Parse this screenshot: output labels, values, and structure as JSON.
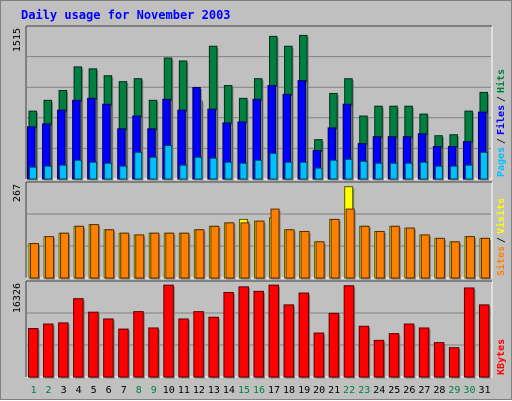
{
  "chart_data": [
    {
      "type": "bar",
      "title": "Daily usage for November 2003",
      "categories": [
        "1",
        "2",
        "3",
        "4",
        "5",
        "6",
        "7",
        "8",
        "9",
        "10",
        "11",
        "12",
        "13",
        "14",
        "15",
        "16",
        "17",
        "18",
        "19",
        "20",
        "21",
        "22",
        "23",
        "24",
        "25",
        "26",
        "27",
        "28",
        "29",
        "30",
        "31"
      ],
      "weekend_days": [
        "1",
        "2",
        "8",
        "9",
        "15",
        "16",
        "22",
        "23",
        "29",
        "30"
      ],
      "ylim": [
        0,
        1515
      ],
      "y_max_label": "1515",
      "series": [
        {
          "name": "Hits",
          "color": "#008040",
          "values": [
            690,
            800,
            900,
            1140,
            1120,
            1050,
            990,
            1020,
            800,
            1230,
            1200,
            800,
            1350,
            950,
            820,
            1020,
            1450,
            1350,
            1460,
            400,
            870,
            1020,
            640,
            740,
            740,
            740,
            660,
            440,
            450,
            690,
            880
          ]
        },
        {
          "name": "Files",
          "color": "#0000ff",
          "values": [
            530,
            560,
            700,
            800,
            820,
            760,
            510,
            640,
            510,
            810,
            700,
            930,
            710,
            570,
            580,
            810,
            950,
            860,
            1000,
            290,
            520,
            760,
            360,
            430,
            430,
            430,
            460,
            330,
            330,
            380,
            680
          ]
        },
        {
          "name": "Pages",
          "color": "#00c0ff",
          "values": [
            120,
            130,
            140,
            190,
            170,
            160,
            130,
            270,
            220,
            340,
            140,
            220,
            210,
            170,
            160,
            190,
            260,
            170,
            170,
            110,
            190,
            200,
            180,
            160,
            160,
            160,
            170,
            130,
            130,
            140,
            270
          ]
        }
      ]
    },
    {
      "type": "bar",
      "categories": [
        "1",
        "2",
        "3",
        "4",
        "5",
        "6",
        "7",
        "8",
        "9",
        "10",
        "11",
        "12",
        "13",
        "14",
        "15",
        "16",
        "17",
        "18",
        "19",
        "20",
        "21",
        "22",
        "23",
        "24",
        "25",
        "26",
        "27",
        "28",
        "29",
        "30",
        "31"
      ],
      "ylim": [
        0,
        267
      ],
      "y_max_label": "267",
      "series": [
        {
          "name": "Visits",
          "color": "#ffff00",
          "values": [
            100,
            120,
            130,
            150,
            155,
            140,
            130,
            125,
            130,
            130,
            130,
            140,
            150,
            160,
            170,
            165,
            175,
            140,
            135,
            105,
            170,
            265,
            150,
            135,
            150,
            145,
            125,
            115,
            105,
            120,
            115
          ]
        },
        {
          "name": "Sites",
          "color": "#ff8000",
          "values": [
            100,
            120,
            130,
            150,
            155,
            140,
            130,
            125,
            130,
            130,
            130,
            140,
            150,
            160,
            160,
            165,
            200,
            140,
            135,
            105,
            170,
            200,
            150,
            135,
            150,
            145,
            125,
            115,
            105,
            120,
            115
          ]
        }
      ]
    },
    {
      "type": "bar",
      "categories": [
        "1",
        "2",
        "3",
        "4",
        "5",
        "6",
        "7",
        "8",
        "9",
        "10",
        "11",
        "12",
        "13",
        "14",
        "15",
        "16",
        "17",
        "18",
        "19",
        "20",
        "21",
        "22",
        "23",
        "24",
        "25",
        "26",
        "27",
        "28",
        "29",
        "30",
        "31"
      ],
      "ylim": [
        0,
        16326
      ],
      "y_max_label": "16326",
      "series": [
        {
          "name": "KBytes",
          "color": "#ff0000",
          "values": [
            8600,
            9400,
            9600,
            13900,
            11500,
            10300,
            8500,
            11600,
            8700,
            16300,
            10300,
            11600,
            10600,
            15000,
            16000,
            15200,
            16300,
            12800,
            14900,
            7800,
            11300,
            16200,
            9000,
            6500,
            7700,
            9400,
            8700,
            6100,
            5200,
            15800,
            12800
          ]
        }
      ]
    }
  ]
}
